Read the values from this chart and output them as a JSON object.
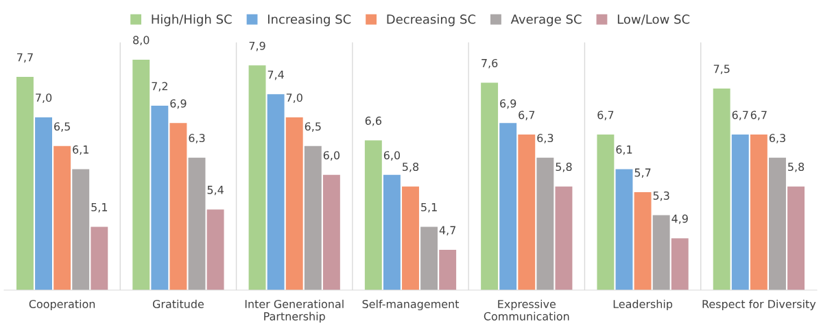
{
  "chart_data": {
    "type": "bar",
    "categories": [
      "Cooperation",
      "Gratitude",
      "Inter Generational\nPartnership",
      "Self-management",
      "Expressive\nCommunication",
      "Leadership",
      "Respect for Diversity"
    ],
    "series": [
      {
        "name": "High/High SC",
        "color": "#a9d18e",
        "values": [
          7.7,
          8.0,
          7.9,
          6.6,
          7.6,
          6.7,
          7.5
        ],
        "value_labels": [
          "7,7",
          "8,0",
          "7,9",
          "6,6",
          "7,6",
          "6,7",
          "7,5"
        ]
      },
      {
        "name": "Increasing SC",
        "color": "#72a9dd",
        "values": [
          7.0,
          7.2,
          7.4,
          6.0,
          6.9,
          6.1,
          6.7
        ],
        "value_labels": [
          "7,0",
          "7,2",
          "7,4",
          "6,0",
          "6,9",
          "6,1",
          "6,7"
        ]
      },
      {
        "name": "Decreasing SC",
        "color": "#f3926b",
        "values": [
          6.5,
          6.9,
          7.0,
          5.8,
          6.7,
          5.7,
          6.7
        ],
        "value_labels": [
          "6,5",
          "6,9",
          "7,0",
          "5,8",
          "6,7",
          "5,7",
          "6,7"
        ]
      },
      {
        "name": "Average SC",
        "color": "#aba7a7",
        "values": [
          6.1,
          6.3,
          6.5,
          5.1,
          6.3,
          5.3,
          6.3
        ],
        "value_labels": [
          "6,1",
          "6,3",
          "6,5",
          "5,1",
          "6,3",
          "5,3",
          "6,3"
        ]
      },
      {
        "name": "Low/Low SC",
        "color": "#c9989f",
        "values": [
          5.1,
          5.4,
          6.0,
          4.7,
          5.8,
          4.9,
          5.8
        ],
        "value_labels": [
          "5,1",
          "5,4",
          "6,0",
          "4,7",
          "5,8",
          "4,9",
          "5,8"
        ]
      }
    ],
    "ylim": [
      4.0,
      8.3
    ],
    "grid": "x",
    "legend": "top",
    "tick_labels": "x"
  }
}
